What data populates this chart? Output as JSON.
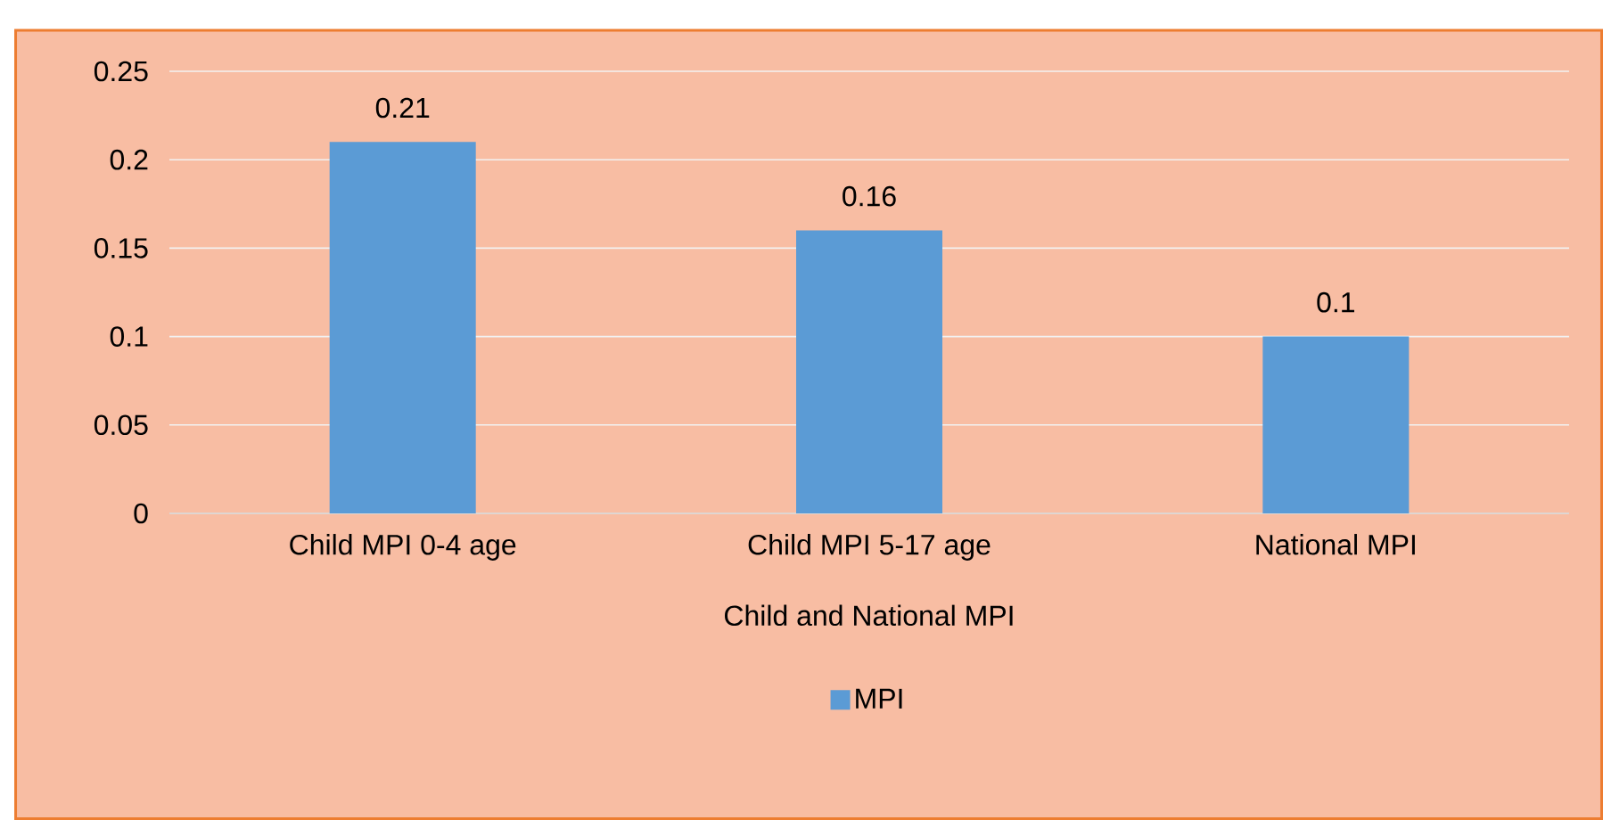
{
  "chart_data": {
    "type": "bar",
    "xlabel": "Child and National MPI",
    "categories": [
      "Child MPI 0-4 age",
      "Child MPI 5-17 age",
      "National MPI"
    ],
    "series": [
      {
        "name": "MPI",
        "color": "#5b9bd5",
        "values": [
          0.21,
          0.16,
          0.1
        ]
      }
    ],
    "ylim": [
      0,
      0.25
    ],
    "yticks": [
      0,
      0.05,
      0.1,
      0.15,
      0.2,
      0.25
    ],
    "grid": "y",
    "data_labels": true,
    "legend": "bottom"
  }
}
